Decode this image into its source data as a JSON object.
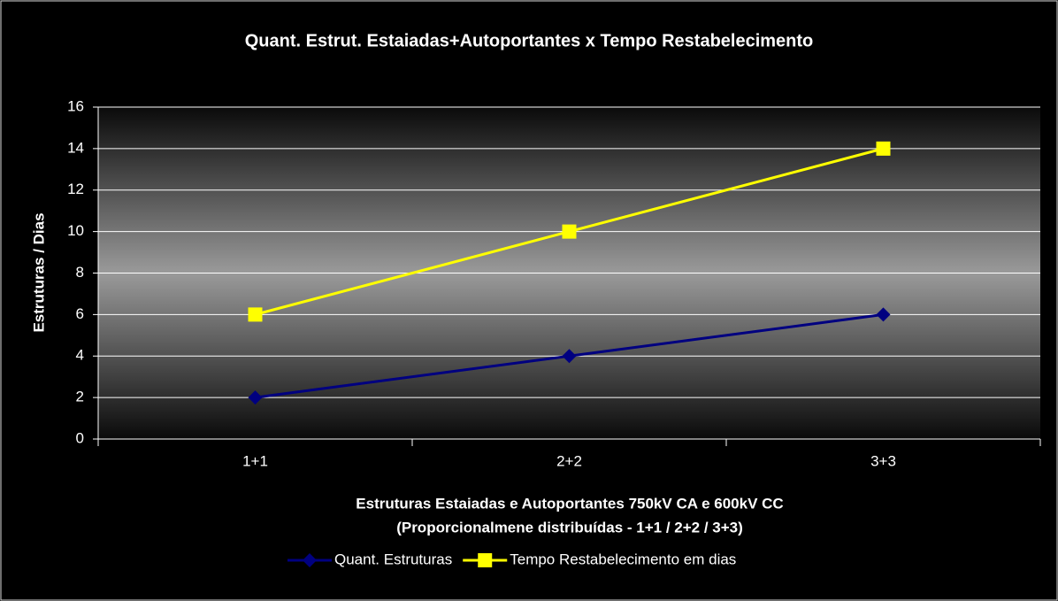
{
  "chart_data": {
    "type": "line",
    "title": "Quant. Estrut. Estaiadas+Autoportantes x Tempo Restabelecimento",
    "ylabel": "Estruturas / Dias",
    "xlabel": [
      "Estruturas Estaiadas e  Autoportantes 750kV CA e 600kV CC",
      "(Proporcionalmene distribuídas - 1+1 / 2+2 / 3+3)"
    ],
    "categories": [
      "1+1",
      "2+2",
      "3+3"
    ],
    "series": [
      {
        "name": "Quant. Estruturas",
        "color": "#000080",
        "marker": "diamond",
        "values": [
          2,
          4,
          6
        ]
      },
      {
        "name": "Tempo Restabelecimento em dias",
        "color": "#ffff00",
        "marker": "square",
        "values": [
          6,
          10,
          14
        ]
      }
    ],
    "ylim": [
      0,
      16
    ],
    "yticks": [
      0,
      2,
      4,
      6,
      8,
      10,
      12,
      14,
      16
    ],
    "grid": true,
    "legend": "bottom"
  }
}
